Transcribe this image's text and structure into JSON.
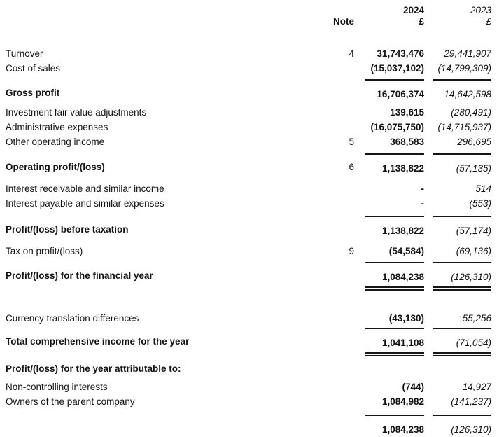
{
  "statement": {
    "header": {
      "note_label": "Note",
      "year_2024": "2024",
      "year_2023": "2023",
      "currency_2024": "£",
      "currency_2023": "£"
    },
    "rows": [
      {
        "label": "Turnover",
        "note": "4",
        "v2024": "31,743,476",
        "v2023": "29,441,907",
        "bold": false,
        "rule_top": false,
        "double_bottom": false,
        "gap_before": 27
      },
      {
        "label": "Cost of sales",
        "note": "",
        "v2024": "(15,037,102)",
        "v2023": "(14,799,309)",
        "bold": false,
        "rule_top": false,
        "double_bottom": false,
        "gap_before": 0
      },
      {
        "label": "Gross profit",
        "note": "",
        "v2024": "16,706,374",
        "v2023": "14,642,598",
        "bold": true,
        "rule_top": true,
        "double_bottom": false,
        "gap_before": 5
      },
      {
        "label": "Investment fair value adjustments",
        "note": "",
        "v2024": "139,615",
        "v2023": "(280,491)",
        "bold": false,
        "rule_top": false,
        "double_bottom": false,
        "gap_before": 5
      },
      {
        "label": "Administrative expenses",
        "note": "",
        "v2024": "(16,075,750)",
        "v2023": "(14,715,937)",
        "bold": false,
        "rule_top": false,
        "double_bottom": false,
        "gap_before": 0
      },
      {
        "label": "Other operating income",
        "note": "5",
        "v2024": "368,583",
        "v2023": "296,695",
        "bold": false,
        "rule_top": false,
        "double_bottom": false,
        "gap_before": 0
      },
      {
        "label": "Operating profit/(loss)",
        "note": "6",
        "v2024": "1,138,822",
        "v2023": "(57,135)",
        "bold": true,
        "rule_top": true,
        "double_bottom": false,
        "gap_before": 6
      },
      {
        "label": "Interest receivable and similar income",
        "note": "",
        "v2024": "-",
        "v2023": "514",
        "bold": false,
        "rule_top": false,
        "double_bottom": false,
        "gap_before": 8
      },
      {
        "label": "Interest payable and similar expenses",
        "note": "",
        "v2024": "-",
        "v2023": "(553)",
        "bold": false,
        "rule_top": false,
        "double_bottom": false,
        "gap_before": 0
      },
      {
        "label": "Profit/(loss) before taxation",
        "note": "",
        "v2024": "1,138,822",
        "v2023": "(57,174)",
        "bold": true,
        "rule_top": true,
        "double_bottom": false,
        "gap_before": 7
      },
      {
        "label": "Tax on profit/(loss)",
        "note": "9",
        "v2024": "(54,584)",
        "v2023": "(69,136)",
        "bold": false,
        "rule_top": false,
        "double_bottom": false,
        "gap_before": 8
      },
      {
        "label": "Profit/(loss) for the financial year",
        "note": "",
        "v2024": "1,084,238",
        "v2023": "(126,310)",
        "bold": true,
        "rule_top": true,
        "double_bottom": true,
        "gap_before": 5
      },
      {
        "label": "Currency translation differences",
        "note": "",
        "v2024": "(43,130)",
        "v2023": "55,256",
        "bold": false,
        "rule_top": false,
        "double_bottom": false,
        "gap_before": 29
      },
      {
        "label": "Total comprehensive income for the year",
        "note": "",
        "v2024": "1,041,108",
        "v2023": "(71,054)",
        "bold": true,
        "rule_top": true,
        "double_bottom": true,
        "gap_before": 3
      },
      {
        "label": "Profit/(loss) for the year attributable to:",
        "note": "",
        "v2024": "",
        "v2023": "",
        "bold": true,
        "rule_top": false,
        "double_bottom": false,
        "gap_before": 7
      },
      {
        "label": "Non-controlling interests",
        "note": "",
        "v2024": "(744)",
        "v2023": "14,927",
        "bold": false,
        "rule_top": false,
        "double_bottom": false,
        "gap_before": 5
      },
      {
        "label": "Owners of the parent company",
        "note": "",
        "v2024": "1,084,982",
        "v2023": "(141,237)",
        "bold": false,
        "rule_top": false,
        "double_bottom": false,
        "gap_before": 0
      },
      {
        "label": "",
        "note": "",
        "v2024": "1,084,238",
        "v2023": "(126,310)",
        "bold": false,
        "rule_top": true,
        "double_bottom": false,
        "gap_before": 8
      }
    ]
  }
}
